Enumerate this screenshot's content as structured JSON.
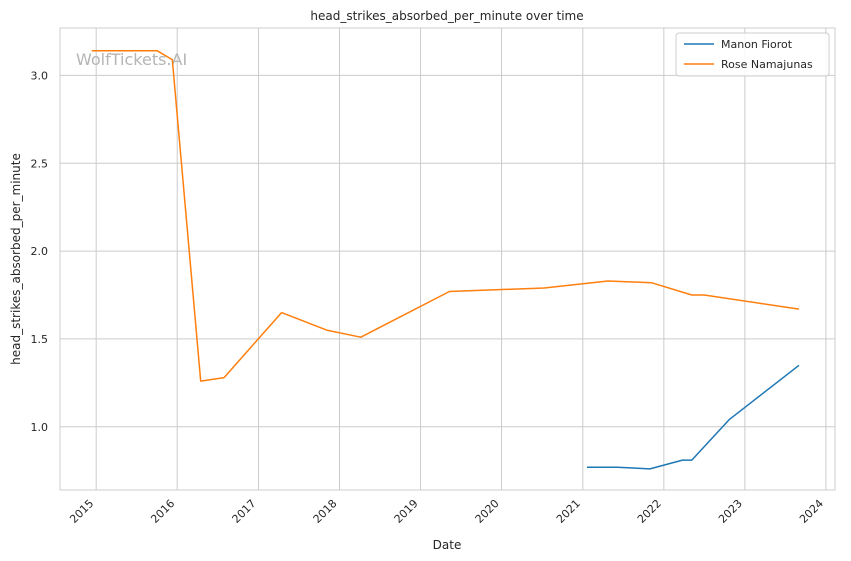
{
  "chart_data": {
    "type": "line",
    "title": "head_strikes_absorbed_per_minute over time",
    "xlabel": "Date",
    "ylabel": "head_strikes_absorbed_per_minute",
    "watermark": "WolfTickets.AI",
    "x_ticks": [
      "2015",
      "2016",
      "2017",
      "2018",
      "2019",
      "2020",
      "2021",
      "2022",
      "2023",
      "2024"
    ],
    "y_ticks": [
      "1.0",
      "1.5",
      "2.0",
      "2.5",
      "3.0"
    ],
    "xlim": [
      "2014-07-22",
      "2024-02-11"
    ],
    "ylim": [
      0.64,
      3.27
    ],
    "grid": true,
    "legend_position": "top-right",
    "series": [
      {
        "name": "Manon Fiorot",
        "color": "#1f77b4",
        "points": [
          [
            "2021-01-20",
            0.77
          ],
          [
            "2021-06-05",
            0.77
          ],
          [
            "2021-10-30",
            0.76
          ],
          [
            "2022-03-26",
            0.81
          ],
          [
            "2022-05-07",
            0.81
          ],
          [
            "2022-10-22",
            1.04
          ],
          [
            "2023-09-02",
            1.35
          ]
        ]
      },
      {
        "name": "Rose Namajunas",
        "color": "#ff7f0e",
        "points": [
          [
            "2014-12-12",
            3.14
          ],
          [
            "2015-10-03",
            3.14
          ],
          [
            "2015-12-10",
            3.09
          ],
          [
            "2016-04-16",
            1.26
          ],
          [
            "2016-07-30",
            1.28
          ],
          [
            "2017-04-15",
            1.65
          ],
          [
            "2017-11-04",
            1.55
          ],
          [
            "2018-04-07",
            1.51
          ],
          [
            "2019-05-11",
            1.77
          ],
          [
            "2020-07-11",
            1.79
          ],
          [
            "2021-04-24",
            1.83
          ],
          [
            "2021-11-06",
            1.82
          ],
          [
            "2022-05-07",
            1.75
          ],
          [
            "2022-07-02",
            1.75
          ],
          [
            "2023-09-02",
            1.67
          ]
        ]
      }
    ]
  }
}
